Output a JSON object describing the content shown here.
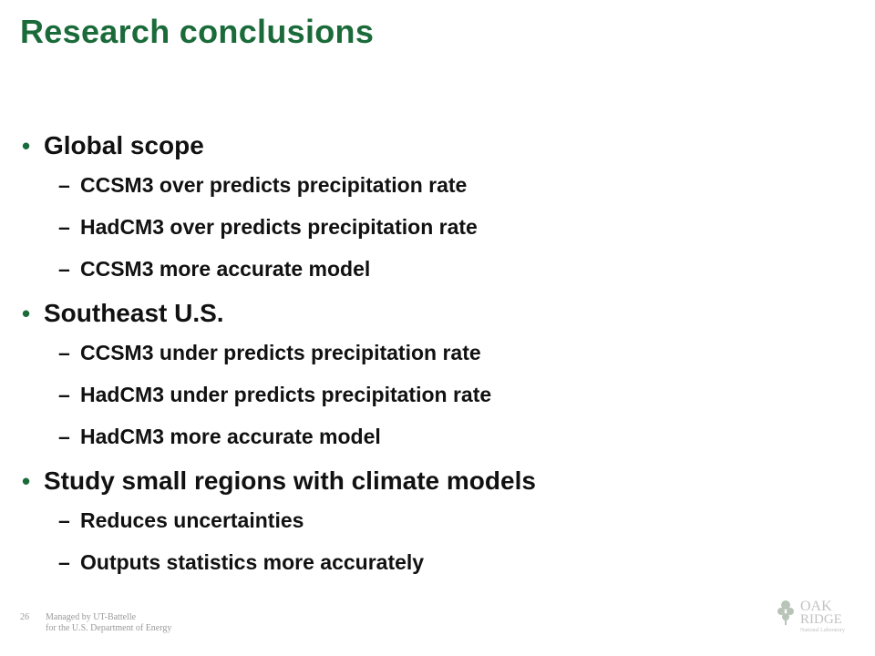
{
  "slide": {
    "title": "Research conclusions",
    "bullets": [
      {
        "text": "Global scope",
        "subs": [
          "CCSM3 over predicts precipitation rate",
          "HadCM3 over predicts precipitation rate",
          "CCSM3 more accurate model"
        ]
      },
      {
        "text": "Southeast U.S.",
        "subs": [
          "CCSM3 under predicts precipitation rate",
          "HadCM3 under predicts precipitation rate",
          "HadCM3 more accurate model"
        ]
      },
      {
        "text": "Study small regions with climate models",
        "subs": [
          "Reduces uncertainties",
          "Outputs statistics more accurately"
        ]
      }
    ],
    "bullet_glyph": "•",
    "sub_glyph": "–"
  },
  "footer": {
    "page_number": "26",
    "line1": "Managed by UT-Battelle",
    "line2": "for the U.S. Department of Energy"
  },
  "logo": {
    "word1": "OAK",
    "word2": "RIDGE",
    "tagline": "National Laboratory"
  },
  "colors": {
    "title": "#1b6b3a",
    "text": "#111111",
    "footer": "#9a9a9a"
  }
}
